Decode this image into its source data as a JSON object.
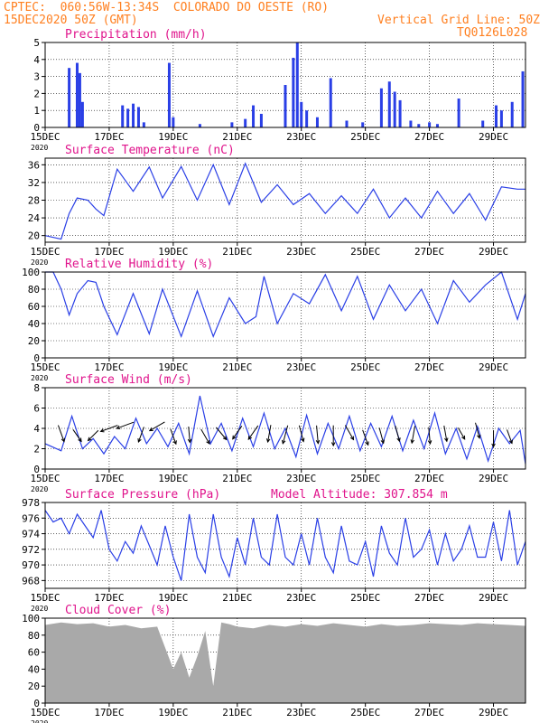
{
  "header": {
    "line1_left": "CPTEC:  060:56W-13:34S  COLORADO DO OESTE (RO)",
    "line2_left": "15DEC2020 50Z (GMT)",
    "line2_right": "Vertical Grid Line: 50Z",
    "line3_right": "TQ0126L028"
  },
  "colors": {
    "header": "#ff7f1f",
    "title": "#e0148c",
    "series": "#2a3fe6",
    "cloud": "#a9a9a9",
    "arrow": "#000000"
  },
  "x_axis": {
    "type": "date",
    "start": "2020-12-15T00:00",
    "end": "2020-12-30T00:00",
    "ticks": [
      "15DEC",
      "17DEC",
      "19DEC",
      "21DEC",
      "23DEC",
      "25DEC",
      "27DEC",
      "29DEC"
    ],
    "tick_dates": [
      "2020-12-15",
      "2020-12-17",
      "2020-12-19",
      "2020-12-21",
      "2020-12-23",
      "2020-12-25",
      "2020-12-27",
      "2020-12-29"
    ],
    "year_label": "2020"
  },
  "chart_data": [
    {
      "id": "precip",
      "type": "bar",
      "title": "Precipitation (mm/h)",
      "ylim": [
        0,
        5
      ],
      "yticks": [
        0,
        1,
        2,
        3,
        4,
        5
      ],
      "x": [
        "2020-12-15T18:00",
        "2020-12-16T00:00",
        "2020-12-16T02:00",
        "2020-12-16T04:00",
        "2020-12-17T10:00",
        "2020-12-17T14:00",
        "2020-12-17T18:00",
        "2020-12-17T22:00",
        "2020-12-18T02:00",
        "2020-12-18T21:00",
        "2020-12-19T00:00",
        "2020-12-19T20:00",
        "2020-12-20T20:00",
        "2020-12-21T06:00",
        "2020-12-21T12:00",
        "2020-12-21T18:00",
        "2020-12-22T12:00",
        "2020-12-22T18:00",
        "2020-12-22T21:00",
        "2020-12-23T00:00",
        "2020-12-23T04:00",
        "2020-12-23T12:00",
        "2020-12-23T22:00",
        "2020-12-24T10:00",
        "2020-12-24T22:00",
        "2020-12-25T12:00",
        "2020-12-25T18:00",
        "2020-12-25T22:00",
        "2020-12-26T02:00",
        "2020-12-26T10:00",
        "2020-12-26T16:00",
        "2020-12-27T00:00",
        "2020-12-27T06:00",
        "2020-12-27T22:00",
        "2020-12-28T16:00",
        "2020-12-29T02:00",
        "2020-12-29T06:00",
        "2020-12-29T14:00",
        "2020-12-29T22:00"
      ],
      "values": [
        3.5,
        3.8,
        3.2,
        1.5,
        1.3,
        1.1,
        1.4,
        1.2,
        0.3,
        3.8,
        0.6,
        0.2,
        0.3,
        0.5,
        1.3,
        0.8,
        2.5,
        4.1,
        5.0,
        1.5,
        1.0,
        0.6,
        2.9,
        0.4,
        0.3,
        2.3,
        2.7,
        2.1,
        1.6,
        0.4,
        0.2,
        0.3,
        0.2,
        1.7,
        0.4,
        1.3,
        1.0,
        1.5,
        3.3
      ]
    },
    {
      "id": "temp",
      "type": "line",
      "title": "Surface Temperature (nC)",
      "ylim": [
        18.5,
        37.5
      ],
      "yticks": [
        20,
        24,
        28,
        32,
        36
      ],
      "x": [
        "2020-12-15T00:00",
        "2020-12-15T12:00",
        "2020-12-15T18:00",
        "2020-12-16T00:00",
        "2020-12-16T08:00",
        "2020-12-16T14:00",
        "2020-12-16T20:00",
        "2020-12-17T06:00",
        "2020-12-17T18:00",
        "2020-12-18T06:00",
        "2020-12-18T16:00",
        "2020-12-19T06:00",
        "2020-12-19T18:00",
        "2020-12-20T06:00",
        "2020-12-20T18:00",
        "2020-12-21T06:00",
        "2020-12-21T18:00",
        "2020-12-22T06:00",
        "2020-12-22T18:00",
        "2020-12-23T06:00",
        "2020-12-23T18:00",
        "2020-12-24T06:00",
        "2020-12-24T18:00",
        "2020-12-25T06:00",
        "2020-12-25T18:00",
        "2020-12-26T06:00",
        "2020-12-26T18:00",
        "2020-12-27T06:00",
        "2020-12-27T18:00",
        "2020-12-28T06:00",
        "2020-12-28T18:00",
        "2020-12-29T06:00",
        "2020-12-29T18:00",
        "2020-12-30T00:00"
      ],
      "values": [
        20.0,
        19.2,
        25.0,
        28.5,
        28.0,
        26.0,
        24.5,
        35.0,
        30.0,
        35.5,
        28.5,
        35.6,
        28.0,
        36.0,
        27.0,
        36.3,
        27.5,
        31.5,
        27.0,
        29.5,
        25.0,
        29.0,
        25.0,
        30.5,
        24.0,
        28.5,
        24.0,
        30.0,
        25.0,
        29.5,
        23.5,
        31.0,
        30.5,
        30.5
      ]
    },
    {
      "id": "rh",
      "type": "line",
      "title": "Relative Humidity (%)",
      "ylim": [
        0,
        100
      ],
      "yticks": [
        0,
        20,
        40,
        60,
        80,
        100
      ],
      "x": [
        "2020-12-15T00:00",
        "2020-12-15T06:00",
        "2020-12-15T12:00",
        "2020-12-15T18:00",
        "2020-12-16T00:00",
        "2020-12-16T08:00",
        "2020-12-16T14:00",
        "2020-12-16T20:00",
        "2020-12-17T06:00",
        "2020-12-17T18:00",
        "2020-12-18T06:00",
        "2020-12-18T16:00",
        "2020-12-19T06:00",
        "2020-12-19T18:00",
        "2020-12-20T06:00",
        "2020-12-20T18:00",
        "2020-12-21T06:00",
        "2020-12-21T14:00",
        "2020-12-21T20:00",
        "2020-12-22T06:00",
        "2020-12-22T18:00",
        "2020-12-23T06:00",
        "2020-12-23T18:00",
        "2020-12-24T06:00",
        "2020-12-24T18:00",
        "2020-12-25T06:00",
        "2020-12-25T18:00",
        "2020-12-26T06:00",
        "2020-12-26T18:00",
        "2020-12-27T06:00",
        "2020-12-27T18:00",
        "2020-12-28T06:00",
        "2020-12-28T18:00",
        "2020-12-29T06:00",
        "2020-12-29T18:00",
        "2020-12-30T00:00"
      ],
      "values": [
        100,
        100,
        80,
        50,
        75,
        90,
        88,
        60,
        27,
        75,
        28,
        80,
        25,
        78,
        25,
        70,
        40,
        48,
        95,
        40,
        75,
        63,
        97,
        55,
        95,
        45,
        85,
        55,
        80,
        40,
        90,
        65,
        85,
        100,
        45,
        75
      ]
    },
    {
      "id": "wind",
      "type": "line",
      "title": "Surface Wind (m/s)",
      "ylim": [
        0,
        8
      ],
      "yticks": [
        0,
        2,
        4,
        6,
        8
      ],
      "x": [
        "2020-12-15T00:00",
        "2020-12-15T12:00",
        "2020-12-15T20:00",
        "2020-12-16T04:00",
        "2020-12-16T12:00",
        "2020-12-16T20:00",
        "2020-12-17T04:00",
        "2020-12-17T12:00",
        "2020-12-17T20:00",
        "2020-12-18T04:00",
        "2020-12-18T12:00",
        "2020-12-18T20:00",
        "2020-12-19T04:00",
        "2020-12-19T12:00",
        "2020-12-19T20:00",
        "2020-12-20T04:00",
        "2020-12-20T12:00",
        "2020-12-20T20:00",
        "2020-12-21T04:00",
        "2020-12-21T12:00",
        "2020-12-21T20:00",
        "2020-12-22T04:00",
        "2020-12-22T12:00",
        "2020-12-22T20:00",
        "2020-12-23T04:00",
        "2020-12-23T12:00",
        "2020-12-23T20:00",
        "2020-12-24T04:00",
        "2020-12-24T12:00",
        "2020-12-24T20:00",
        "2020-12-25T04:00",
        "2020-12-25T12:00",
        "2020-12-25T20:00",
        "2020-12-26T04:00",
        "2020-12-26T12:00",
        "2020-12-26T20:00",
        "2020-12-27T04:00",
        "2020-12-27T12:00",
        "2020-12-27T20:00",
        "2020-12-28T04:00",
        "2020-12-28T12:00",
        "2020-12-28T20:00",
        "2020-12-29T04:00",
        "2020-12-29T12:00",
        "2020-12-29T20:00",
        "2020-12-30T00:00"
      ],
      "values": [
        2.5,
        1.8,
        5.2,
        2.0,
        3.0,
        1.5,
        3.2,
        2.0,
        5.0,
        2.5,
        4.0,
        2.2,
        4.5,
        1.5,
        7.2,
        2.5,
        4.5,
        1.8,
        5.0,
        2.2,
        5.5,
        2.0,
        4.0,
        1.2,
        5.3,
        1.5,
        4.5,
        2.0,
        5.2,
        1.8,
        4.5,
        2.2,
        5.2,
        1.8,
        4.8,
        2.0,
        5.5,
        1.5,
        4.0,
        1.0,
        4.2,
        0.8,
        4.0,
        2.5,
        3.8,
        0.5
      ],
      "arrows": {
        "x": [
          "2020-12-15T12:00",
          "2020-12-16T00:00",
          "2020-12-16T12:00",
          "2020-12-17T00:00",
          "2020-12-17T12:00",
          "2020-12-18T00:00",
          "2020-12-18T12:00",
          "2020-12-19T00:00",
          "2020-12-19T12:00",
          "2020-12-20T00:00",
          "2020-12-20T12:00",
          "2020-12-21T00:00",
          "2020-12-21T12:00",
          "2020-12-22T00:00",
          "2020-12-22T12:00",
          "2020-12-23T00:00",
          "2020-12-23T12:00",
          "2020-12-24T00:00",
          "2020-12-24T12:00",
          "2020-12-25T00:00",
          "2020-12-25T12:00",
          "2020-12-26T00:00",
          "2020-12-26T12:00",
          "2020-12-27T00:00",
          "2020-12-27T12:00",
          "2020-12-28T00:00",
          "2020-12-28T12:00",
          "2020-12-29T00:00",
          "2020-12-29T12:00"
        ],
        "y": [
          3.5,
          3.3,
          3.3,
          4.0,
          4.3,
          3.4,
          4.2,
          3.2,
          3.4,
          3.2,
          3.5,
          3.6,
          3.6,
          3.5,
          3.4,
          3.5,
          3.4,
          3.3,
          3.6,
          3.1,
          3.3,
          3.5,
          3.4,
          3.3,
          3.5,
          3.5,
          3.8,
          3.0,
          3.2
        ],
        "dir_deg": [
          160,
          145,
          225,
          250,
          250,
          200,
          240,
          160,
          175,
          150,
          140,
          215,
          215,
          190,
          195,
          165,
          175,
          180,
          150,
          160,
          165,
          165,
          190,
          175,
          170,
          150,
          165,
          180,
          160
        ],
        "speed": [
          2.4,
          2.0,
          2.0,
          2.5,
          2.5,
          2.2,
          2.4,
          2.2,
          2.2,
          2.3,
          2.2,
          2.2,
          2.3,
          2.4,
          2.6,
          2.3,
          2.5,
          2.8,
          2.3,
          2.2,
          2.2,
          2.2,
          2.4,
          2.3,
          2.2,
          1.8,
          2.2,
          2.3,
          2.0
        ]
      }
    },
    {
      "id": "press",
      "type": "line",
      "title": "Surface Pressure (hPa)",
      "subtitle": "Model Altitude: 307.854 m",
      "ylim": [
        967,
        978
      ],
      "yticks": [
        968,
        970,
        972,
        974,
        976,
        978
      ],
      "x": [
        "2020-12-15T00:00",
        "2020-12-15T06:00",
        "2020-12-15T12:00",
        "2020-12-15T18:00",
        "2020-12-16T00:00",
        "2020-12-16T06:00",
        "2020-12-16T12:00",
        "2020-12-16T18:00",
        "2020-12-17T00:00",
        "2020-12-17T06:00",
        "2020-12-17T12:00",
        "2020-12-17T18:00",
        "2020-12-18T00:00",
        "2020-12-18T06:00",
        "2020-12-18T12:00",
        "2020-12-18T18:00",
        "2020-12-19T00:00",
        "2020-12-19T06:00",
        "2020-12-19T12:00",
        "2020-12-19T18:00",
        "2020-12-20T00:00",
        "2020-12-20T06:00",
        "2020-12-20T12:00",
        "2020-12-20T18:00",
        "2020-12-21T00:00",
        "2020-12-21T06:00",
        "2020-12-21T12:00",
        "2020-12-21T18:00",
        "2020-12-22T00:00",
        "2020-12-22T06:00",
        "2020-12-22T12:00",
        "2020-12-22T18:00",
        "2020-12-23T00:00",
        "2020-12-23T06:00",
        "2020-12-23T12:00",
        "2020-12-23T18:00",
        "2020-12-24T00:00",
        "2020-12-24T06:00",
        "2020-12-24T12:00",
        "2020-12-24T18:00",
        "2020-12-25T00:00",
        "2020-12-25T06:00",
        "2020-12-25T12:00",
        "2020-12-25T18:00",
        "2020-12-26T00:00",
        "2020-12-26T06:00",
        "2020-12-26T12:00",
        "2020-12-26T18:00",
        "2020-12-27T00:00",
        "2020-12-27T06:00",
        "2020-12-27T12:00",
        "2020-12-27T18:00",
        "2020-12-28T00:00",
        "2020-12-28T06:00",
        "2020-12-28T12:00",
        "2020-12-28T18:00",
        "2020-12-29T00:00",
        "2020-12-29T06:00",
        "2020-12-29T12:00",
        "2020-12-29T18:00",
        "2020-12-30T00:00"
      ],
      "values": [
        977,
        975.5,
        976,
        974,
        976.5,
        975,
        973.5,
        977,
        972,
        970.5,
        973,
        971.5,
        975,
        972.5,
        970,
        975,
        971,
        968,
        976.5,
        971,
        969,
        976.5,
        971,
        968.5,
        973.5,
        970,
        976,
        971,
        970,
        976.5,
        971,
        970,
        974,
        970,
        976,
        971,
        969,
        975,
        970.5,
        970,
        973,
        968.5,
        975,
        971.5,
        970,
        976,
        971,
        972,
        974.5,
        970,
        974,
        970.5,
        972,
        975,
        971,
        971,
        975.5,
        970.5,
        977,
        970,
        973
      ]
    },
    {
      "id": "cloud",
      "type": "area",
      "title": "Cloud Cover (%)",
      "ylim": [
        0,
        100
      ],
      "yticks": [
        0,
        20,
        40,
        60,
        80,
        100
      ],
      "x": [
        "2020-12-15T00:00",
        "2020-12-15T12:00",
        "2020-12-16T00:00",
        "2020-12-16T12:00",
        "2020-12-17T00:00",
        "2020-12-17T12:00",
        "2020-12-18T00:00",
        "2020-12-18T12:00",
        "2020-12-19T00:00",
        "2020-12-19T06:00",
        "2020-12-19T12:00",
        "2020-12-19T18:00",
        "2020-12-20T00:00",
        "2020-12-20T06:00",
        "2020-12-20T12:00",
        "2020-12-20T18:00",
        "2020-12-21T00:00",
        "2020-12-21T12:00",
        "2020-12-22T00:00",
        "2020-12-22T12:00",
        "2020-12-23T00:00",
        "2020-12-23T12:00",
        "2020-12-24T00:00",
        "2020-12-24T12:00",
        "2020-12-25T00:00",
        "2020-12-25T12:00",
        "2020-12-26T00:00",
        "2020-12-26T12:00",
        "2020-12-27T00:00",
        "2020-12-27T12:00",
        "2020-12-28T00:00",
        "2020-12-28T12:00",
        "2020-12-29T00:00",
        "2020-12-29T12:00",
        "2020-12-30T00:00"
      ],
      "values": [
        92,
        95,
        93,
        94,
        90,
        92,
        88,
        90,
        40,
        60,
        30,
        55,
        85,
        20,
        95,
        93,
        90,
        88,
        92,
        90,
        93,
        91,
        94,
        92,
        90,
        93,
        91,
        92,
        94,
        93,
        92,
        94,
        93,
        92,
        91
      ]
    }
  ]
}
